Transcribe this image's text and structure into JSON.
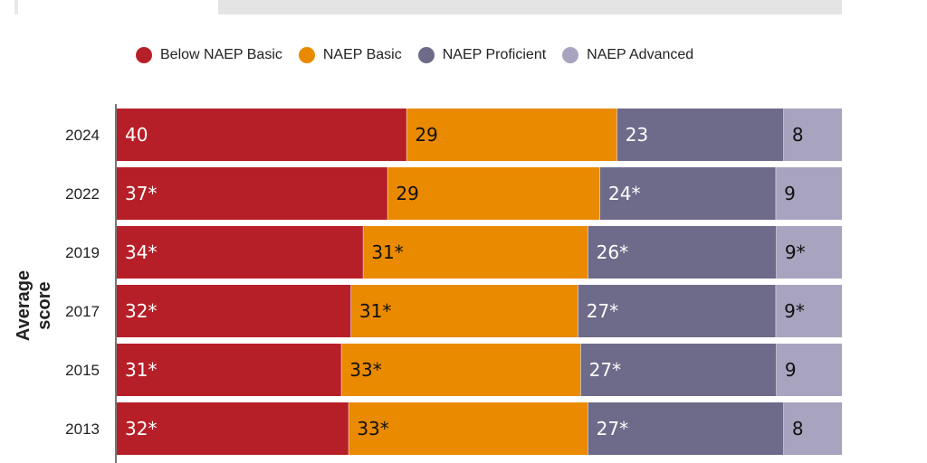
{
  "chart_data": {
    "type": "bar",
    "orientation": "horizontal",
    "stacked": true,
    "ylabel": "Average score",
    "categories": [
      "2024",
      "2022",
      "2019",
      "2017",
      "2015",
      "2013"
    ],
    "series": [
      {
        "name": "Below NAEP Basic",
        "color": "#b71f28",
        "values": [
          40,
          37,
          34,
          32,
          31,
          32
        ],
        "labels": [
          "40",
          "37*",
          "34*",
          "32*",
          "31*",
          "32*"
        ]
      },
      {
        "name": "NAEP Basic",
        "color": "#ea8a00",
        "values": [
          29,
          29,
          31,
          31,
          33,
          33
        ],
        "labels": [
          "29",
          "29",
          "31*",
          "31*",
          "33*",
          "33*"
        ]
      },
      {
        "name": "NAEP Proficient",
        "color": "#6e6a8a",
        "values": [
          23,
          24,
          26,
          27,
          27,
          27
        ],
        "labels": [
          "23",
          "24*",
          "26*",
          "27*",
          "27*",
          "27*"
        ]
      },
      {
        "name": "NAEP Advanced",
        "color": "#a8a3bf",
        "values": [
          8,
          9,
          9,
          9,
          9,
          8
        ],
        "labels": [
          "8",
          "9",
          "9*",
          "9*",
          "9",
          "8"
        ]
      }
    ],
    "legend": "top",
    "xlim": [
      0,
      100
    ]
  }
}
